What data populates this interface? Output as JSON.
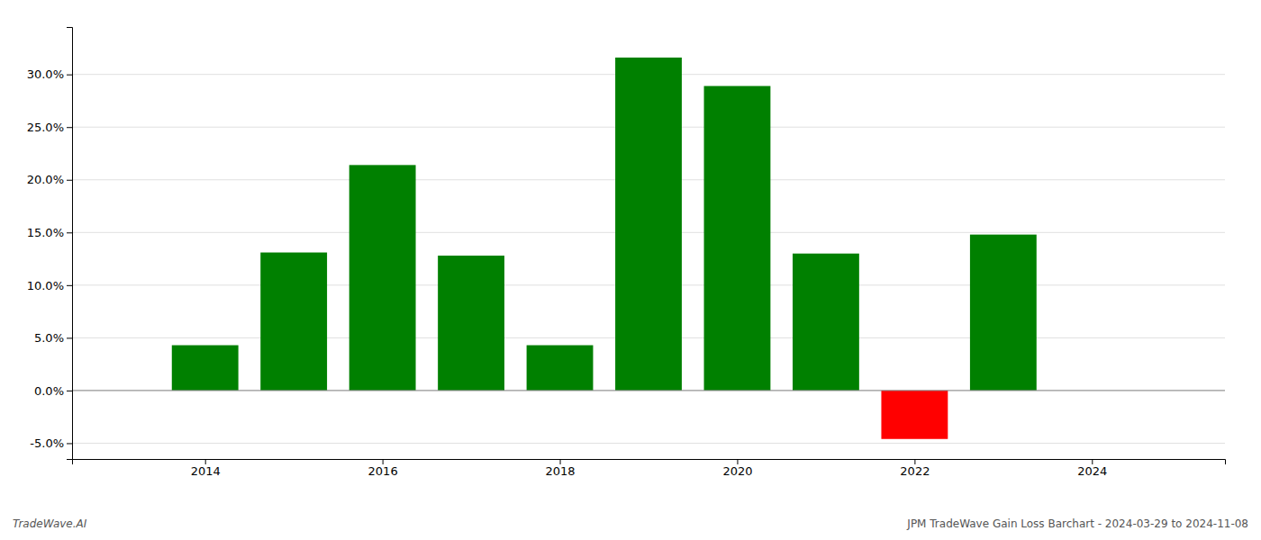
{
  "chart_data": {
    "type": "bar",
    "title": "JPM TradeWave Gain Loss Barchart - 2024-03-29 to 2024-11-08",
    "annotations": [
      "TradeWave.AI"
    ],
    "x": [
      2014,
      2015,
      2016,
      2017,
      2018,
      2019,
      2020,
      2021,
      2022,
      2023
    ],
    "values": [
      0.043,
      0.131,
      0.214,
      0.128,
      0.043,
      0.316,
      0.289,
      0.13,
      -0.046,
      0.148
    ],
    "colors": [
      "#008000",
      "#008000",
      "#008000",
      "#008000",
      "#008000",
      "#008000",
      "#008000",
      "#008000",
      "#ff0000",
      "#008000"
    ],
    "xlim": [
      2012.5,
      2025.5
    ],
    "xticks": [
      2014,
      2016,
      2018,
      2020,
      2022,
      2024
    ],
    "ylim": [
      -0.065,
      0.345
    ],
    "yticks": [
      {
        "value": -0.05,
        "label": "-5.0%"
      },
      {
        "value": 0.0,
        "label": "0.0%"
      },
      {
        "value": 0.05,
        "label": "5.0%"
      },
      {
        "value": 0.1,
        "label": "10.0%"
      },
      {
        "value": 0.15,
        "label": "15.0%"
      },
      {
        "value": 0.2,
        "label": "20.0%"
      },
      {
        "value": 0.25,
        "label": "25.0%"
      },
      {
        "value": 0.3,
        "label": "30.0%"
      }
    ],
    "grid": true
  }
}
